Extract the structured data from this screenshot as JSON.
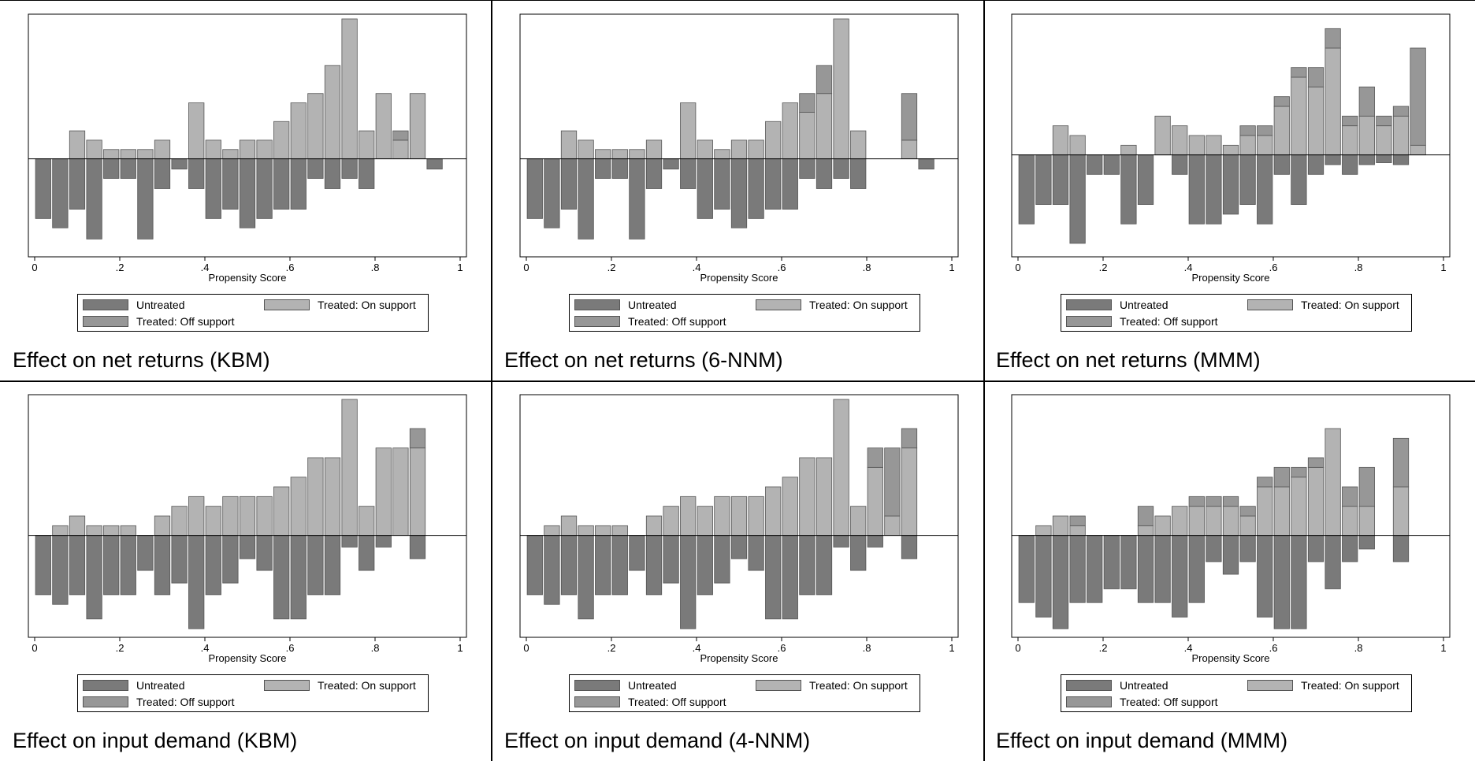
{
  "colors": {
    "untreated": "#7a7a7a",
    "treated_on": "#b3b3b3",
    "treated_off": "#979797",
    "frame": "#000000",
    "bar_edge": "#555555"
  },
  "legend": {
    "untreated": "Untreated",
    "treated_on": "Treated: On support",
    "treated_off": "Treated: Off support"
  },
  "panels": [
    {
      "caption": "Effect on net returns (KBM)",
      "xlabel": "Propensity Score",
      "xticks": [
        "0",
        ".2",
        ".4",
        ".6",
        ".8",
        "1"
      ]
    },
    {
      "caption": "Effect on net returns (6-NNM)",
      "xlabel": "Propensity Score",
      "xticks": [
        "0",
        ".2",
        ".4",
        ".6",
        ".8",
        "1"
      ]
    },
    {
      "caption": "Effect on net returns (MMM)",
      "xlabel": "Propensity Score",
      "xticks": [
        "0",
        ".2",
        ".4",
        ".6",
        ".8",
        "1"
      ]
    },
    {
      "caption": "Effect on input demand (KBM)",
      "xlabel": "Propensity Score",
      "xticks": [
        "0",
        ".2",
        ".4",
        ".6",
        ".8",
        "1"
      ]
    },
    {
      "caption": "Effect on input demand (4-NNM)",
      "xlabel": "Propensity Score",
      "xticks": [
        "0",
        ".2",
        ".4",
        ".6",
        ".8",
        "1"
      ]
    },
    {
      "caption": "Effect on input demand (MMM)",
      "xlabel": "Propensity Score",
      "xticks": [
        "0",
        ".2",
        ".4",
        ".6",
        ".8",
        "1"
      ]
    }
  ],
  "chart_data": [
    {
      "type": "bar",
      "title": "",
      "xlabel": "Propensity Score",
      "ylabel": "",
      "xlim": [
        0,
        1
      ],
      "ylim": [
        -10,
        15
      ],
      "bin_width": 0.04,
      "series": [
        {
          "name": "Untreated",
          "x": [
            0.02,
            0.06,
            0.1,
            0.14,
            0.18,
            0.22,
            0.26,
            0.3,
            0.34,
            0.38,
            0.42,
            0.46,
            0.5,
            0.54,
            0.58,
            0.62,
            0.66,
            0.7,
            0.74,
            0.78
          ],
          "values": [
            -6.4,
            -7.4,
            -5.4,
            -8.6,
            -2.1,
            -2.1,
            -8.6,
            -3.2,
            -1.1,
            -3.2,
            -6.4,
            -5.4,
            -7.4,
            -6.4,
            -5.4,
            -5.4,
            -2.1,
            -3.2,
            -2.1,
            -3.2
          ]
        },
        {
          "name": "Treated: On support",
          "x": [
            0.1,
            0.14,
            0.18,
            0.22,
            0.26,
            0.3,
            0.38,
            0.42,
            0.46,
            0.5,
            0.54,
            0.58,
            0.62,
            0.66,
            0.7,
            0.74,
            0.78,
            0.82,
            0.86,
            0.9
          ],
          "values": [
            3.0,
            2.0,
            1.0,
            1.0,
            1.0,
            2.0,
            6.0,
            2.0,
            1.0,
            2.0,
            2.0,
            4.0,
            6.0,
            7.0,
            10.0,
            15.0,
            3.0,
            7.0,
            2.0,
            7.0
          ]
        },
        {
          "name": "Treated: Off support",
          "x": [
            0.86
          ],
          "base": [
            2.0
          ],
          "values": [
            1.0
          ]
        },
        {
          "name": "Untreated",
          "x": [
            0.94
          ],
          "values": [
            -1.1
          ]
        }
      ]
    },
    {
      "type": "bar",
      "title": "",
      "xlabel": "Propensity Score",
      "ylabel": "",
      "xlim": [
        0,
        1
      ],
      "ylim": [
        -10,
        15
      ],
      "bin_width": 0.04,
      "series": [
        {
          "name": "Untreated",
          "x": [
            0.02,
            0.06,
            0.1,
            0.14,
            0.18,
            0.22,
            0.26,
            0.3,
            0.34,
            0.38,
            0.42,
            0.46,
            0.5,
            0.54,
            0.58,
            0.62,
            0.66,
            0.7,
            0.74,
            0.78,
            0.94
          ],
          "values": [
            -6.4,
            -7.4,
            -5.4,
            -8.6,
            -2.1,
            -2.1,
            -8.6,
            -3.2,
            -1.1,
            -3.2,
            -6.4,
            -5.4,
            -7.4,
            -6.4,
            -5.4,
            -5.4,
            -2.1,
            -3.2,
            -2.1,
            -3.2,
            -1.1
          ]
        },
        {
          "name": "Treated: On support",
          "x": [
            0.1,
            0.14,
            0.18,
            0.22,
            0.26,
            0.3,
            0.38,
            0.42,
            0.46,
            0.5,
            0.54,
            0.58,
            0.62,
            0.66,
            0.7,
            0.74,
            0.78,
            0.9
          ],
          "values": [
            3.0,
            2.0,
            1.0,
            1.0,
            1.0,
            2.0,
            6.0,
            2.0,
            1.0,
            2.0,
            2.0,
            4.0,
            6.0,
            5.0,
            7.0,
            15.0,
            3.0,
            2.0
          ]
        },
        {
          "name": "Treated: Off support",
          "x": [
            0.66,
            0.7,
            0.9
          ],
          "base": [
            5.0,
            7.0,
            2.0
          ],
          "values": [
            2.0,
            3.0,
            5.0
          ]
        }
      ]
    },
    {
      "type": "bar",
      "title": "",
      "xlabel": "Propensity Score",
      "ylabel": "",
      "xlim": [
        0,
        1
      ],
      "ylim": [
        -10,
        14
      ],
      "bin_width": 0.04,
      "series": [
        {
          "name": "Untreated",
          "x": [
            0.02,
            0.06,
            0.1,
            0.14,
            0.18,
            0.22,
            0.26,
            0.3,
            0.38,
            0.42,
            0.46,
            0.5,
            0.54,
            0.58,
            0.62,
            0.66,
            0.7,
            0.74,
            0.78,
            0.82,
            0.86,
            0.9
          ],
          "values": [
            -7.1,
            -5.1,
            -5.1,
            -9.1,
            -2.0,
            -2.0,
            -7.1,
            -5.1,
            -2.0,
            -7.1,
            -7.1,
            -6.1,
            -5.1,
            -7.1,
            -2.0,
            -5.1,
            -2.0,
            -1.0,
            -2.0,
            -1.0,
            -0.8,
            -1.0
          ]
        },
        {
          "name": "Treated: On support",
          "x": [
            0.1,
            0.14,
            0.26,
            0.34,
            0.38,
            0.42,
            0.46,
            0.5,
            0.54,
            0.58,
            0.62,
            0.66,
            0.7,
            0.74,
            0.78,
            0.82,
            0.86,
            0.9,
            0.94
          ],
          "values": [
            3.0,
            2.0,
            1.0,
            4.0,
            3.0,
            2.0,
            2.0,
            1.0,
            2.0,
            2.0,
            5.0,
            8.0,
            7.0,
            11.0,
            3.0,
            4.0,
            3.0,
            4.0,
            1.0
          ]
        },
        {
          "name": "Treated: Off support",
          "x": [
            0.54,
            0.58,
            0.62,
            0.66,
            0.7,
            0.74,
            0.78,
            0.82,
            0.86,
            0.9,
            0.94
          ],
          "base": [
            2.0,
            2.0,
            5.0,
            8.0,
            7.0,
            11.0,
            3.0,
            4.0,
            3.0,
            4.0,
            1.0
          ],
          "values": [
            1.0,
            1.0,
            1.0,
            1.0,
            2.0,
            2.0,
            1.0,
            3.0,
            1.0,
            1.0,
            10.0
          ]
        }
      ]
    },
    {
      "type": "bar",
      "title": "",
      "xlabel": "Propensity Score",
      "ylabel": "",
      "xlim": [
        0,
        1
      ],
      "ylim": [
        -10,
        14
      ],
      "bin_width": 0.04,
      "series": [
        {
          "name": "Untreated",
          "x": [
            0.02,
            0.06,
            0.1,
            0.14,
            0.18,
            0.22,
            0.26,
            0.3,
            0.34,
            0.38,
            0.42,
            0.46,
            0.5,
            0.54,
            0.58,
            0.62,
            0.66,
            0.7,
            0.74,
            0.78,
            0.82,
            0.9
          ],
          "values": [
            -6.1,
            -7.1,
            -6.1,
            -8.6,
            -6.1,
            -6.1,
            -3.6,
            -6.1,
            -4.9,
            -9.6,
            -6.1,
            -4.9,
            -2.4,
            -3.6,
            -8.6,
            -8.6,
            -6.1,
            -6.1,
            -1.2,
            -3.6,
            -1.2,
            -2.4
          ]
        },
        {
          "name": "Treated: On support",
          "x": [
            0.06,
            0.1,
            0.14,
            0.18,
            0.22,
            0.26,
            0.3,
            0.34,
            0.38,
            0.42,
            0.46,
            0.5,
            0.54,
            0.58,
            0.62,
            0.66,
            0.7,
            0.74,
            0.78,
            0.82,
            0.86,
            0.9
          ],
          "values": [
            1.0,
            2.0,
            1.0,
            1.0,
            1.0,
            0.0,
            2.0,
            3.0,
            4.0,
            3.0,
            4.0,
            4.0,
            4.0,
            5.0,
            6.0,
            8.0,
            8.0,
            14.0,
            3.0,
            9.0,
            9.0,
            9.0
          ]
        },
        {
          "name": "Treated: Off support",
          "x": [
            0.9
          ],
          "base": [
            9.0
          ],
          "values": [
            2.0
          ]
        }
      ]
    },
    {
      "type": "bar",
      "title": "",
      "xlabel": "Propensity Score",
      "ylabel": "",
      "xlim": [
        0,
        1
      ],
      "ylim": [
        -10,
        14
      ],
      "bin_width": 0.04,
      "series": [
        {
          "name": "Untreated",
          "x": [
            0.02,
            0.06,
            0.1,
            0.14,
            0.18,
            0.22,
            0.26,
            0.3,
            0.34,
            0.38,
            0.42,
            0.46,
            0.5,
            0.54,
            0.58,
            0.62,
            0.66,
            0.7,
            0.74,
            0.78,
            0.82,
            0.9
          ],
          "values": [
            -6.1,
            -7.1,
            -6.1,
            -8.6,
            -6.1,
            -6.1,
            -3.6,
            -6.1,
            -4.9,
            -9.6,
            -6.1,
            -4.9,
            -2.4,
            -3.6,
            -8.6,
            -8.6,
            -6.1,
            -6.1,
            -1.2,
            -3.6,
            -1.2,
            -2.4
          ]
        },
        {
          "name": "Treated: On support",
          "x": [
            0.06,
            0.1,
            0.14,
            0.18,
            0.22,
            0.26,
            0.3,
            0.34,
            0.38,
            0.42,
            0.46,
            0.5,
            0.54,
            0.58,
            0.62,
            0.66,
            0.7,
            0.74,
            0.78,
            0.82,
            0.86,
            0.9
          ],
          "values": [
            1.0,
            2.0,
            1.0,
            1.0,
            1.0,
            0.0,
            2.0,
            3.0,
            4.0,
            3.0,
            4.0,
            4.0,
            4.0,
            5.0,
            6.0,
            8.0,
            8.0,
            14.0,
            3.0,
            7.0,
            2.0,
            9.0
          ]
        },
        {
          "name": "Treated: Off support",
          "x": [
            0.82,
            0.86,
            0.9
          ],
          "base": [
            7.0,
            2.0,
            9.0
          ],
          "values": [
            2.0,
            7.0,
            2.0
          ]
        }
      ]
    },
    {
      "type": "bar",
      "title": "",
      "xlabel": "Propensity Score",
      "ylabel": "",
      "xlim": [
        0,
        1
      ],
      "ylim": [
        -10,
        14
      ],
      "bin_width": 0.04,
      "series": [
        {
          "name": "Untreated",
          "x": [
            0.02,
            0.06,
            0.1,
            0.14,
            0.18,
            0.22,
            0.26,
            0.3,
            0.34,
            0.38,
            0.42,
            0.46,
            0.5,
            0.54,
            0.58,
            0.62,
            0.66,
            0.7,
            0.74,
            0.78,
            0.82,
            0.9
          ],
          "values": [
            -6.9,
            -8.4,
            -9.6,
            -6.9,
            -6.9,
            -5.5,
            -5.5,
            -6.9,
            -6.9,
            -8.4,
            -6.9,
            -2.7,
            -4.0,
            -2.7,
            -8.4,
            -9.6,
            -9.6,
            -2.7,
            -5.5,
            -2.7,
            -1.4,
            -2.7
          ]
        },
        {
          "name": "Treated: On support",
          "x": [
            0.06,
            0.1,
            0.14,
            0.26,
            0.3,
            0.34,
            0.38,
            0.42,
            0.46,
            0.5,
            0.54,
            0.58,
            0.62,
            0.66,
            0.7,
            0.74,
            0.78,
            0.82,
            0.9
          ],
          "values": [
            1.0,
            2.0,
            1.0,
            0.0,
            1.0,
            2.0,
            3.0,
            3.0,
            3.0,
            3.0,
            2.0,
            5.0,
            5.0,
            6.0,
            7.0,
            11.0,
            3.0,
            3.0,
            5.0
          ]
        },
        {
          "name": "Treated: Off support",
          "x": [
            0.14,
            0.3,
            0.42,
            0.46,
            0.5,
            0.54,
            0.58,
            0.62,
            0.66,
            0.7,
            0.78,
            0.82,
            0.9
          ],
          "base": [
            1.0,
            1.0,
            3.0,
            3.0,
            3.0,
            2.0,
            5.0,
            5.0,
            6.0,
            7.0,
            3.0,
            3.0,
            5.0
          ],
          "values": [
            1.0,
            2.0,
            1.0,
            1.0,
            1.0,
            1.0,
            1.0,
            2.0,
            1.0,
            1.0,
            2.0,
            4.0,
            5.0
          ]
        }
      ]
    }
  ]
}
